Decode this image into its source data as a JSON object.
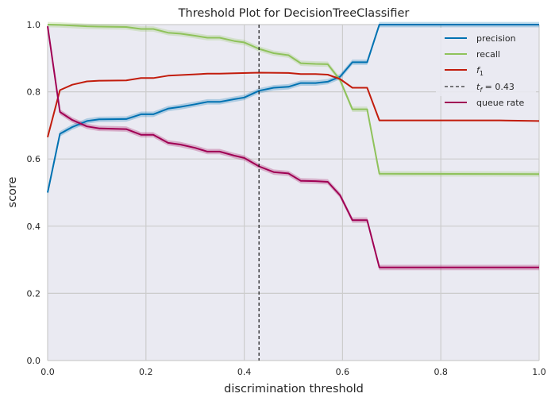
{
  "chart_data": {
    "type": "line",
    "title": "Threshold Plot for DecisionTreeClassifier",
    "xlabel": "discrimination threshold",
    "ylabel": "score",
    "xlim": [
      0,
      1
    ],
    "ylim": [
      0,
      1
    ],
    "grid": true,
    "legend_placement": "top-right",
    "xticks": [
      "0.0",
      "0.2",
      "0.4",
      "0.6",
      "0.8",
      "1.0"
    ],
    "yticks": [
      "0.0",
      "0.2",
      "0.4",
      "0.6",
      "0.8",
      "1.0"
    ],
    "series": [
      {
        "name": "precision",
        "color": "#0072b2",
        "band": true,
        "points": [
          [
            0.0,
            0.5
          ],
          [
            0.025,
            0.675
          ],
          [
            0.05,
            0.695
          ],
          [
            0.08,
            0.713
          ],
          [
            0.105,
            0.718
          ],
          [
            0.16,
            0.719
          ],
          [
            0.19,
            0.733
          ],
          [
            0.215,
            0.733
          ],
          [
            0.245,
            0.75
          ],
          [
            0.27,
            0.755
          ],
          [
            0.3,
            0.763
          ],
          [
            0.325,
            0.77
          ],
          [
            0.35,
            0.77
          ],
          [
            0.38,
            0.778
          ],
          [
            0.4,
            0.783
          ],
          [
            0.43,
            0.803
          ],
          [
            0.46,
            0.812
          ],
          [
            0.49,
            0.815
          ],
          [
            0.515,
            0.826
          ],
          [
            0.545,
            0.826
          ],
          [
            0.57,
            0.83
          ],
          [
            0.595,
            0.845
          ],
          [
            0.62,
            0.888
          ],
          [
            0.65,
            0.888
          ],
          [
            0.675,
            1.0
          ],
          [
            1.0,
            1.0
          ]
        ]
      },
      {
        "name": "recall",
        "color": "#8fc25b",
        "band": true,
        "points": [
          [
            0.0,
            1.0
          ],
          [
            0.025,
            0.999
          ],
          [
            0.08,
            0.995
          ],
          [
            0.105,
            0.994
          ],
          [
            0.16,
            0.993
          ],
          [
            0.19,
            0.987
          ],
          [
            0.215,
            0.987
          ],
          [
            0.245,
            0.976
          ],
          [
            0.27,
            0.973
          ],
          [
            0.3,
            0.967
          ],
          [
            0.325,
            0.961
          ],
          [
            0.35,
            0.961
          ],
          [
            0.38,
            0.951
          ],
          [
            0.4,
            0.947
          ],
          [
            0.43,
            0.928
          ],
          [
            0.46,
            0.915
          ],
          [
            0.49,
            0.909
          ],
          [
            0.515,
            0.885
          ],
          [
            0.545,
            0.883
          ],
          [
            0.57,
            0.882
          ],
          [
            0.595,
            0.835
          ],
          [
            0.62,
            0.748
          ],
          [
            0.65,
            0.748
          ],
          [
            0.675,
            0.556
          ],
          [
            1.0,
            0.555
          ]
        ]
      },
      {
        "name": "f1",
        "color": "#c21c0c",
        "band": false,
        "points": [
          [
            0.0,
            0.665
          ],
          [
            0.025,
            0.805
          ],
          [
            0.05,
            0.821
          ],
          [
            0.08,
            0.831
          ],
          [
            0.105,
            0.833
          ],
          [
            0.16,
            0.834
          ],
          [
            0.19,
            0.841
          ],
          [
            0.215,
            0.841
          ],
          [
            0.245,
            0.848
          ],
          [
            0.3,
            0.852
          ],
          [
            0.325,
            0.854
          ],
          [
            0.35,
            0.854
          ],
          [
            0.38,
            0.855
          ],
          [
            0.43,
            0.857
          ],
          [
            0.49,
            0.856
          ],
          [
            0.515,
            0.853
          ],
          [
            0.545,
            0.853
          ],
          [
            0.57,
            0.851
          ],
          [
            0.595,
            0.838
          ],
          [
            0.62,
            0.812
          ],
          [
            0.65,
            0.812
          ],
          [
            0.675,
            0.715
          ],
          [
            0.92,
            0.715
          ],
          [
            1.0,
            0.713
          ]
        ]
      },
      {
        "name": "queue rate",
        "color": "#a00054",
        "band": true,
        "points": [
          [
            0.0,
            0.995
          ],
          [
            0.025,
            0.74
          ],
          [
            0.05,
            0.716
          ],
          [
            0.08,
            0.697
          ],
          [
            0.105,
            0.691
          ],
          [
            0.16,
            0.689
          ],
          [
            0.19,
            0.672
          ],
          [
            0.215,
            0.672
          ],
          [
            0.245,
            0.648
          ],
          [
            0.27,
            0.643
          ],
          [
            0.3,
            0.633
          ],
          [
            0.325,
            0.622
          ],
          [
            0.35,
            0.622
          ],
          [
            0.38,
            0.61
          ],
          [
            0.4,
            0.603
          ],
          [
            0.43,
            0.578
          ],
          [
            0.46,
            0.561
          ],
          [
            0.49,
            0.557
          ],
          [
            0.515,
            0.535
          ],
          [
            0.545,
            0.534
          ],
          [
            0.57,
            0.532
          ],
          [
            0.595,
            0.492
          ],
          [
            0.62,
            0.418
          ],
          [
            0.65,
            0.418
          ],
          [
            0.675,
            0.277
          ],
          [
            1.0,
            0.277
          ]
        ]
      }
    ],
    "threshold": {
      "value": 0.43,
      "label": "t_f = 0.43"
    }
  }
}
